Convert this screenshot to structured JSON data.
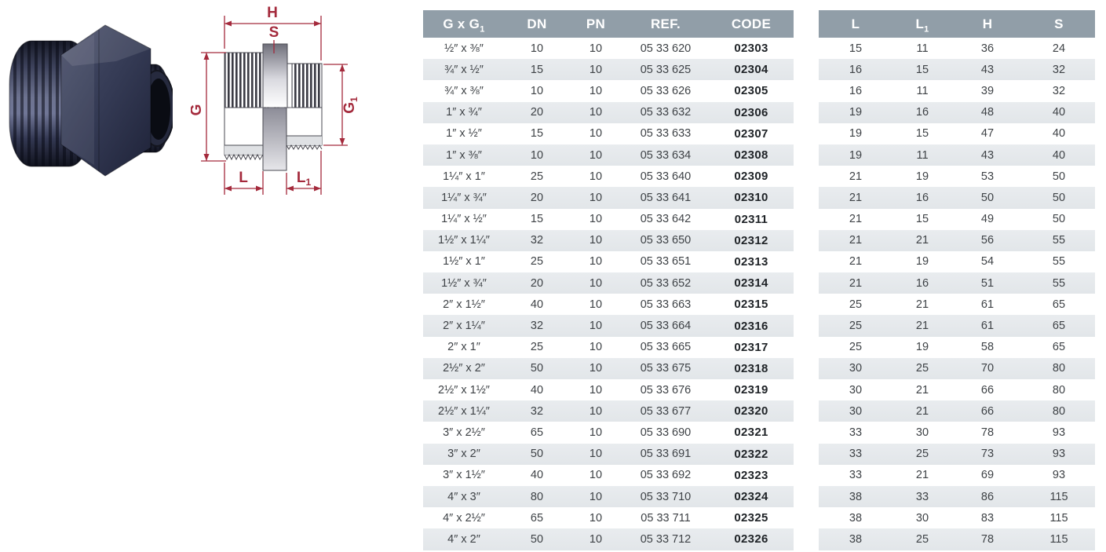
{
  "page": {
    "background": "#ffffff"
  },
  "photo": {
    "description": "Dark grey PVC reducing nipple: two male threaded ends with hexagonal centre section"
  },
  "diagram": {
    "dimension_labels": [
      "H",
      "S",
      "G",
      "G₁",
      "L",
      "L₁"
    ],
    "line_color": "#a42a3c"
  },
  "spec_table": {
    "headers": [
      "G x G₁",
      "DN",
      "PN",
      "REF.",
      "CODE"
    ],
    "header_bg": "#919ea8",
    "band_bg": "#e6e9ec",
    "rows": [
      [
        "½″ x ⅜″",
        "10",
        "10",
        "05 33 620",
        "02303"
      ],
      [
        "¾″ x ½″",
        "15",
        "10",
        "05 33 625",
        "02304"
      ],
      [
        "¾″ x ⅜″",
        "10",
        "10",
        "05 33 626",
        "02305"
      ],
      [
        "1″ x ¾″",
        "20",
        "10",
        "05 33 632",
        "02306"
      ],
      [
        "1″ x ½″",
        "15",
        "10",
        "05 33 633",
        "02307"
      ],
      [
        "1″ x ⅜″",
        "10",
        "10",
        "05 33 634",
        "02308"
      ],
      [
        "1¼″ x 1″",
        "25",
        "10",
        "05 33 640",
        "02309"
      ],
      [
        "1¼″ x ¾″",
        "20",
        "10",
        "05 33 641",
        "02310"
      ],
      [
        "1¼″ x ½″",
        "15",
        "10",
        "05 33 642",
        "02311"
      ],
      [
        "1½″ x 1¼″",
        "32",
        "10",
        "05 33 650",
        "02312"
      ],
      [
        "1½″ x 1″",
        "25",
        "10",
        "05 33 651",
        "02313"
      ],
      [
        "1½″ x ¾″",
        "20",
        "10",
        "05 33 652",
        "02314"
      ],
      [
        "2″ x 1½″",
        "40",
        "10",
        "05 33 663",
        "02315"
      ],
      [
        "2″ x 1¼″",
        "32",
        "10",
        "05 33 664",
        "02316"
      ],
      [
        "2″ x 1″",
        "25",
        "10",
        "05 33 665",
        "02317"
      ],
      [
        "2½″ x 2″",
        "50",
        "10",
        "05 33 675",
        "02318"
      ],
      [
        "2½″ x 1½″",
        "40",
        "10",
        "05 33 676",
        "02319"
      ],
      [
        "2½″ x 1¼″",
        "32",
        "10",
        "05 33 677",
        "02320"
      ],
      [
        "3″ x 2½″",
        "65",
        "10",
        "05 33 690",
        "02321"
      ],
      [
        "3″ x 2″",
        "50",
        "10",
        "05 33 691",
        "02322"
      ],
      [
        "3″ x 1½″",
        "40",
        "10",
        "05 33 692",
        "02323"
      ],
      [
        "4″ x 3″",
        "80",
        "10",
        "05 33 710",
        "02324"
      ],
      [
        "4″ x 2½″",
        "65",
        "10",
        "05 33 711",
        "02325"
      ],
      [
        "4″ x 2″",
        "50",
        "10",
        "05 33 712",
        "02326"
      ]
    ]
  },
  "dim_table": {
    "headers": [
      "L",
      "L₁",
      "H",
      "S"
    ],
    "rows": [
      [
        "15",
        "11",
        "36",
        "24"
      ],
      [
        "16",
        "15",
        "43",
        "32"
      ],
      [
        "16",
        "11",
        "39",
        "32"
      ],
      [
        "19",
        "16",
        "48",
        "40"
      ],
      [
        "19",
        "15",
        "47",
        "40"
      ],
      [
        "19",
        "11",
        "43",
        "40"
      ],
      [
        "21",
        "19",
        "53",
        "50"
      ],
      [
        "21",
        "16",
        "50",
        "50"
      ],
      [
        "21",
        "15",
        "49",
        "50"
      ],
      [
        "21",
        "21",
        "56",
        "55"
      ],
      [
        "21",
        "19",
        "54",
        "55"
      ],
      [
        "21",
        "16",
        "51",
        "55"
      ],
      [
        "25",
        "21",
        "61",
        "65"
      ],
      [
        "25",
        "21",
        "61",
        "65"
      ],
      [
        "25",
        "19",
        "58",
        "65"
      ],
      [
        "30",
        "25",
        "70",
        "80"
      ],
      [
        "30",
        "21",
        "66",
        "80"
      ],
      [
        "30",
        "21",
        "66",
        "80"
      ],
      [
        "33",
        "30",
        "78",
        "93"
      ],
      [
        "33",
        "25",
        "73",
        "93"
      ],
      [
        "33",
        "21",
        "69",
        "93"
      ],
      [
        "38",
        "33",
        "86",
        "115"
      ],
      [
        "38",
        "30",
        "83",
        "115"
      ],
      [
        "38",
        "25",
        "78",
        "115"
      ]
    ]
  }
}
